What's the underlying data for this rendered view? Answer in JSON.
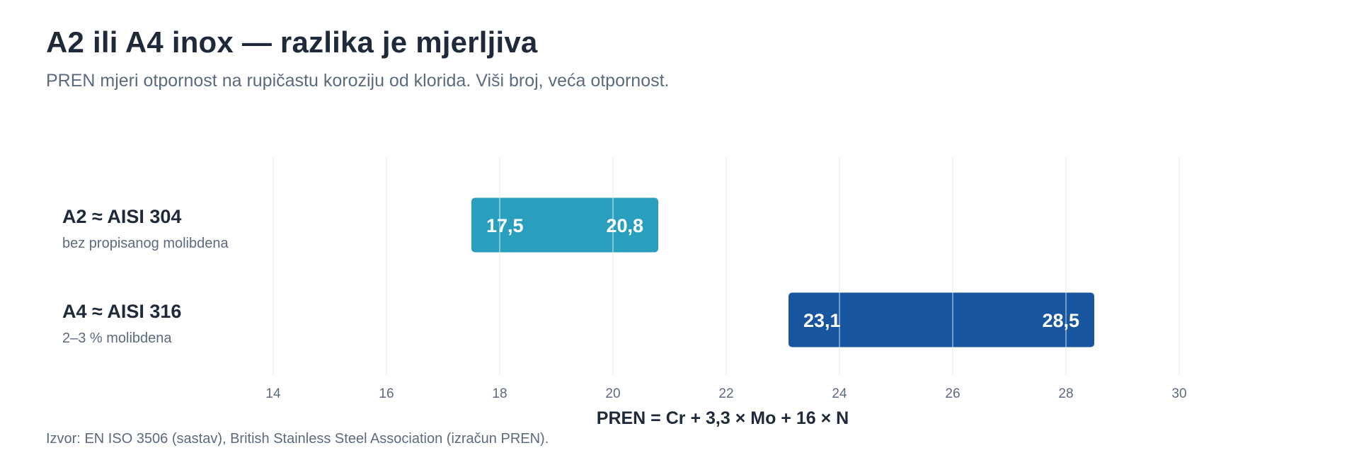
{
  "header": {
    "title": "A2 ili A4 inox — razlika je mjerljiva",
    "subtitle": "PREN mjeri otpornost na rupičastu koroziju od klorida. Viši broj, veća otpornost."
  },
  "footer": {
    "source": "Izvor: EN ISO 3506 (sastav), British Stainless Steel Association (izračun PREN)."
  },
  "chart_data": {
    "type": "bar",
    "orientation": "horizontal",
    "variant": "range",
    "xlabel": "PREN = Cr + 3,3 × Mo + 16 × N",
    "xlim": [
      14,
      30
    ],
    "xticks": [
      14,
      16,
      18,
      20,
      22,
      24,
      26,
      28,
      30
    ],
    "tick_labels": [
      "14",
      "16",
      "18",
      "20",
      "22",
      "24",
      "26",
      "28",
      "30"
    ],
    "grid": true,
    "categories": [
      {
        "label": "A2 ≈ AISI 304",
        "sublabel": "bez propisanog molibdena",
        "min": 17.5,
        "max": 20.8,
        "min_label": "17,5",
        "max_label": "20,8",
        "color": "#299fbd"
      },
      {
        "label": "A4 ≈ AISI 316",
        "sublabel": "2–3 % molibdena",
        "min": 23.1,
        "max": 28.5,
        "min_label": "23,1",
        "max_label": "28,5",
        "color": "#17559f"
      }
    ]
  }
}
